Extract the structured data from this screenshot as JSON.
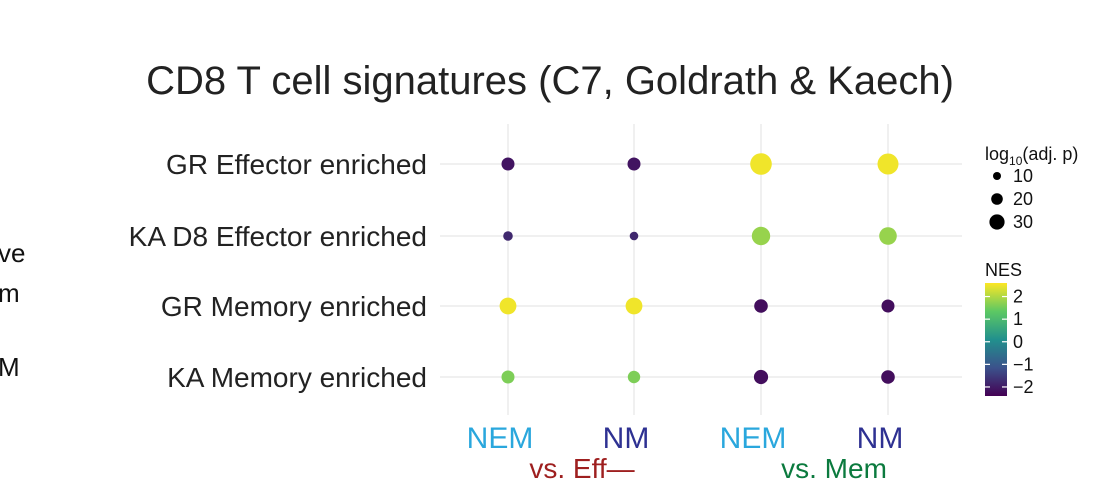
{
  "chart_data": {
    "type": "scatter",
    "title": "CD8 T cell signatures (C7, Goldrath & Kaech)",
    "categories_y": [
      "GR Effector enriched",
      "KA D8 Effector enriched",
      "GR Memory enriched",
      "KA Memory enriched"
    ],
    "categories_x": [
      {
        "label": "NEM",
        "color": "#2aa7dd"
      },
      {
        "label": "NM",
        "color": "#2e3192"
      },
      {
        "label": "NEM",
        "color": "#2aa7dd"
      },
      {
        "label": "NM",
        "color": "#2e3192"
      }
    ],
    "groups": [
      {
        "label": "vs. Eff—",
        "color": "#9e1f1f"
      },
      {
        "label": "vs. Mem",
        "color": "#0b7a3e"
      }
    ],
    "points": [
      {
        "x": 0,
        "y": 0,
        "nes": -2.1,
        "size": 8
      },
      {
        "x": 1,
        "y": 0,
        "nes": -2.1,
        "size": 8
      },
      {
        "x": 2,
        "y": 0,
        "nes": 2.5,
        "size": 30
      },
      {
        "x": 3,
        "y": 0,
        "nes": 2.5,
        "size": 28
      },
      {
        "x": 0,
        "y": 1,
        "nes": -1.8,
        "size": 3
      },
      {
        "x": 1,
        "y": 1,
        "nes": -1.8,
        "size": 2
      },
      {
        "x": 2,
        "y": 1,
        "nes": 1.8,
        "size": 20
      },
      {
        "x": 3,
        "y": 1,
        "nes": 1.8,
        "size": 18
      },
      {
        "x": 0,
        "y": 2,
        "nes": 2.5,
        "size": 16
      },
      {
        "x": 1,
        "y": 2,
        "nes": 2.5,
        "size": 16
      },
      {
        "x": 2,
        "y": 2,
        "nes": -2.2,
        "size": 9
      },
      {
        "x": 3,
        "y": 2,
        "nes": -2.2,
        "size": 8
      },
      {
        "x": 0,
        "y": 3,
        "nes": 1.6,
        "size": 8
      },
      {
        "x": 1,
        "y": 3,
        "nes": 1.6,
        "size": 7
      },
      {
        "x": 2,
        "y": 3,
        "nes": -2.2,
        "size": 10
      },
      {
        "x": 3,
        "y": 3,
        "nes": -2.2,
        "size": 9
      }
    ],
    "size_legend": {
      "title_main": "log",
      "title_sub": "10",
      "title_rest": "(adj. p)",
      "values": [
        10,
        20,
        30
      ]
    },
    "color_legend": {
      "title": "NES",
      "ticks": [
        "2",
        "1",
        "0",
        "−1",
        "−2"
      ],
      "tick_values": [
        2,
        1,
        0,
        -1,
        -2
      ],
      "range": [
        -2.4,
        2.6
      ]
    },
    "colorscale": [
      "#440154",
      "#3b528b",
      "#21908d",
      "#5dc863",
      "#fde725"
    ],
    "grid": true,
    "legend_position": "right"
  },
  "left_cut": {
    "lines": [
      "ve",
      "m",
      "M"
    ]
  }
}
